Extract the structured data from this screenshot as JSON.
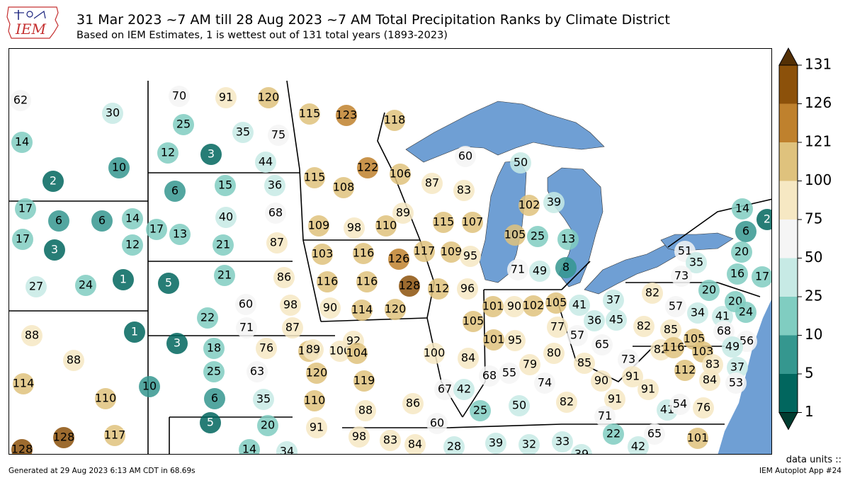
{
  "header": {
    "logo_text": "IEM",
    "title": "31 Mar 2023 ~7 AM till 28 Aug 2023 ~7 AM Total Precipitation Ranks by Climate District",
    "subtitle": "Based on IEM Estimates, 1 is wettest out of 131 total years (1893-2023)"
  },
  "colors": {
    "water": "#6f9fd4",
    "bins": [
      "#01665e",
      "#35978f",
      "#80cdc1",
      "#c7eae5",
      "#f5f5f5",
      "#f6e8c3",
      "#dfc27d",
      "#bf812d",
      "#8c510a"
    ]
  },
  "colorbar": {
    "ticks": [
      "131",
      "126",
      "121",
      "100",
      "75",
      "50",
      "25",
      "10",
      "5",
      "1"
    ]
  },
  "districts": [
    {
      "rank": "62"
    },
    {
      "rank": "30"
    },
    {
      "rank": "14"
    },
    {
      "rank": "10"
    },
    {
      "rank": "2"
    },
    {
      "rank": "70"
    },
    {
      "rank": "91"
    },
    {
      "rank": "120"
    },
    {
      "rank": "25"
    },
    {
      "rank": "35"
    },
    {
      "rank": "75"
    },
    {
      "rank": "12"
    },
    {
      "rank": "3"
    },
    {
      "rank": "44"
    },
    {
      "rank": "115"
    },
    {
      "rank": "123"
    },
    {
      "rank": "118"
    },
    {
      "rank": "115"
    },
    {
      "rank": "108"
    },
    {
      "rank": "122"
    },
    {
      "rank": "106"
    },
    {
      "rank": "87"
    },
    {
      "rank": "83"
    },
    {
      "rank": "60"
    },
    {
      "rank": "50"
    },
    {
      "rank": "6"
    },
    {
      "rank": "15"
    },
    {
      "rank": "36"
    },
    {
      "rank": "17"
    },
    {
      "rank": "13"
    },
    {
      "rank": "40"
    },
    {
      "rank": "68"
    },
    {
      "rank": "21"
    },
    {
      "rank": "87"
    },
    {
      "rank": "17"
    },
    {
      "rank": "6"
    },
    {
      "rank": "6"
    },
    {
      "rank": "14"
    },
    {
      "rank": "17"
    },
    {
      "rank": "3"
    },
    {
      "rank": "12"
    },
    {
      "rank": "1"
    },
    {
      "rank": "27"
    },
    {
      "rank": "24"
    },
    {
      "rank": "109"
    },
    {
      "rank": "98"
    },
    {
      "rank": "110"
    },
    {
      "rank": "89"
    },
    {
      "rank": "115"
    },
    {
      "rank": "107"
    },
    {
      "rank": "102"
    },
    {
      "rank": "39"
    },
    {
      "rank": "105"
    },
    {
      "rank": "25"
    },
    {
      "rank": "13"
    },
    {
      "rank": "103"
    },
    {
      "rank": "116"
    },
    {
      "rank": "126"
    },
    {
      "rank": "117"
    },
    {
      "rank": "109"
    },
    {
      "rank": "95"
    },
    {
      "rank": "71"
    },
    {
      "rank": "49"
    },
    {
      "rank": "8"
    },
    {
      "rank": "5"
    },
    {
      "rank": "21"
    },
    {
      "rank": "86"
    },
    {
      "rank": "116"
    },
    {
      "rank": "116"
    },
    {
      "rank": "128"
    },
    {
      "rank": "112"
    },
    {
      "rank": "96"
    },
    {
      "rank": "60"
    },
    {
      "rank": "98"
    },
    {
      "rank": "90"
    },
    {
      "rank": "114"
    },
    {
      "rank": "120"
    },
    {
      "rank": "101"
    },
    {
      "rank": "90"
    },
    {
      "rank": "102"
    },
    {
      "rank": "105"
    },
    {
      "rank": "41"
    },
    {
      "rank": "37"
    },
    {
      "rank": "22"
    },
    {
      "rank": "71"
    },
    {
      "rank": "87"
    },
    {
      "rank": "104"
    },
    {
      "rank": "100"
    },
    {
      "rank": "105"
    },
    {
      "rank": "77"
    },
    {
      "rank": "36"
    },
    {
      "rank": "45"
    },
    {
      "rank": "88"
    },
    {
      "rank": "1"
    },
    {
      "rank": "3"
    },
    {
      "rank": "18"
    },
    {
      "rank": "76"
    },
    {
      "rank": "89"
    },
    {
      "rank": "92"
    },
    {
      "rank": "101"
    },
    {
      "rank": "95"
    },
    {
      "rank": "57"
    },
    {
      "rank": "65"
    },
    {
      "rank": "88"
    },
    {
      "rank": "25"
    },
    {
      "rank": "63"
    },
    {
      "rank": "120"
    },
    {
      "rank": "104"
    },
    {
      "rank": "100"
    },
    {
      "rank": "84"
    },
    {
      "rank": "80"
    },
    {
      "rank": "85"
    },
    {
      "rank": "73"
    },
    {
      "rank": "114"
    },
    {
      "rank": "10"
    },
    {
      "rank": "119"
    },
    {
      "rank": "68"
    },
    {
      "rank": "55"
    },
    {
      "rank": "79"
    },
    {
      "rank": "74"
    },
    {
      "rank": "90"
    },
    {
      "rank": "91"
    },
    {
      "rank": "110"
    },
    {
      "rank": "6"
    },
    {
      "rank": "35"
    },
    {
      "rank": "110"
    },
    {
      "rank": "67"
    },
    {
      "rank": "42"
    },
    {
      "rank": "88"
    },
    {
      "rank": "86"
    },
    {
      "rank": "25"
    },
    {
      "rank": "50"
    },
    {
      "rank": "82"
    },
    {
      "rank": "91"
    },
    {
      "rank": "91"
    },
    {
      "rank": "71"
    },
    {
      "rank": "5"
    },
    {
      "rank": "20"
    },
    {
      "rank": "91"
    },
    {
      "rank": "60"
    },
    {
      "rank": "128"
    },
    {
      "rank": "128"
    },
    {
      "rank": "117"
    },
    {
      "rank": "14"
    },
    {
      "rank": "34"
    },
    {
      "rank": "98"
    },
    {
      "rank": "83"
    },
    {
      "rank": "84"
    },
    {
      "rank": "28"
    },
    {
      "rank": "39"
    },
    {
      "rank": "32"
    },
    {
      "rank": "33"
    },
    {
      "rank": "39"
    },
    {
      "rank": "22"
    },
    {
      "rank": "65"
    },
    {
      "rank": "42"
    },
    {
      "rank": "101"
    },
    {
      "rank": "14"
    },
    {
      "rank": "2"
    },
    {
      "rank": "6"
    },
    {
      "rank": "51"
    },
    {
      "rank": "35"
    },
    {
      "rank": "20"
    },
    {
      "rank": "73"
    },
    {
      "rank": "16"
    },
    {
      "rank": "17"
    },
    {
      "rank": "82"
    },
    {
      "rank": "20"
    },
    {
      "rank": "57"
    },
    {
      "rank": "34"
    },
    {
      "rank": "41"
    },
    {
      "rank": "20"
    },
    {
      "rank": "24"
    },
    {
      "rank": "82"
    },
    {
      "rank": "85"
    },
    {
      "rank": "68"
    },
    {
      "rank": "105"
    },
    {
      "rank": "56"
    },
    {
      "rank": "82"
    },
    {
      "rank": "116"
    },
    {
      "rank": "103"
    },
    {
      "rank": "49"
    },
    {
      "rank": "112"
    },
    {
      "rank": "83"
    },
    {
      "rank": "37"
    },
    {
      "rank": "84"
    },
    {
      "rank": "53"
    },
    {
      "rank": "41"
    },
    {
      "rank": "54"
    },
    {
      "rank": "76"
    }
  ],
  "footer": {
    "units": "data units ::",
    "generated": "Generated at 29 Aug 2023 6:13 AM CDT in 68.69s",
    "app": "IEM Autoplot App #24"
  }
}
